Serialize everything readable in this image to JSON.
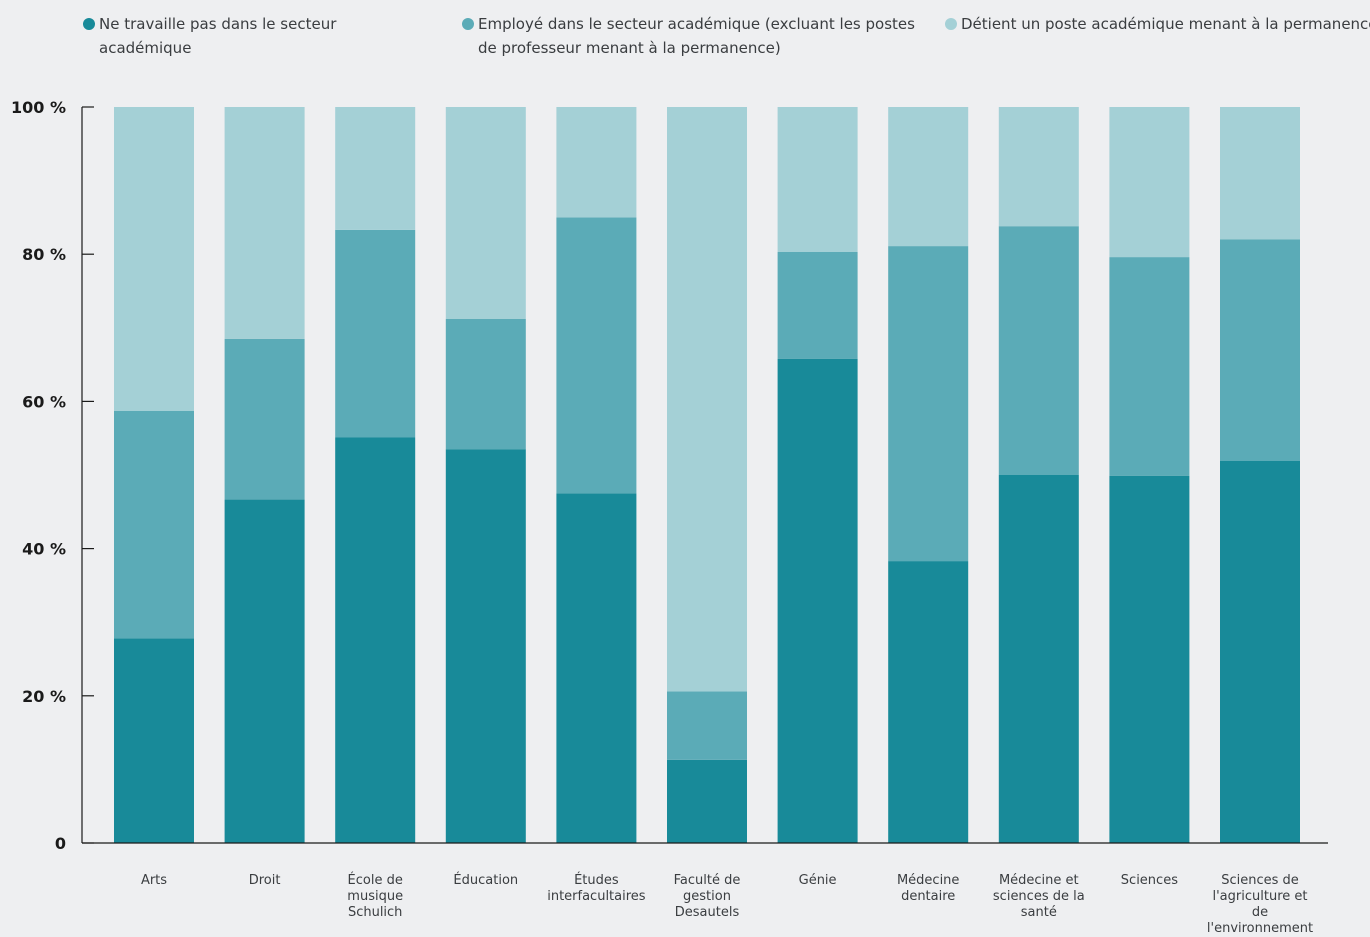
{
  "chart_data": {
    "type": "bar",
    "stacked": true,
    "categories": [
      "Arts",
      "Droit",
      "École de musique Schulich",
      "Éducation",
      "Études interfacultaires",
      "Faculté de gestion Desautels",
      "Génie",
      "Médecine dentaire",
      "Médecine et sciences de la santé",
      "Sciences",
      "Sciences de l'agriculture et de l'environnement"
    ],
    "series": [
      {
        "name": "Ne travaille pas dans le secteur académique",
        "color": "#188a99",
        "values": [
          27.8,
          46.7,
          55.1,
          53.5,
          47.5,
          11.3,
          65.8,
          38.3,
          50.0,
          49.9,
          51.9
        ]
      },
      {
        "name": "Employé dans le secteur académique (excluant les postes de professeur menant à la permanence)",
        "color": "#5babb7",
        "values": [
          30.9,
          21.8,
          28.2,
          17.7,
          37.5,
          9.3,
          14.5,
          42.8,
          33.8,
          29.7,
          30.1
        ]
      },
      {
        "name": "Détient un poste académique menant à la permanence",
        "color": "#a4d0d6",
        "values": [
          41.3,
          31.5,
          16.7,
          28.8,
          15.0,
          79.4,
          19.7,
          18.9,
          16.2,
          20.4,
          18.0
        ]
      }
    ],
    "yticks": [
      "0",
      "20 %",
      "40 %",
      "60 %",
      "80 %",
      "100 %"
    ],
    "ylim": [
      0,
      100
    ],
    "legend": "top"
  }
}
